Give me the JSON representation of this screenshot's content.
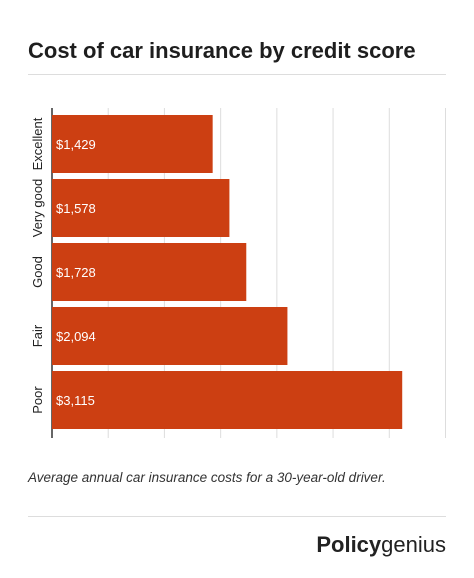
{
  "title": "Cost of car insurance by credit score",
  "caption": "Average annual car insurance costs for a 30-year-old driver.",
  "brand": {
    "bold": "Policy",
    "light": "genius"
  },
  "colors": {
    "bar": "#cc3f12",
    "grid": "#dddddd",
    "axis": "#333333",
    "label": "#ffffff"
  },
  "chart_data": {
    "type": "bar",
    "orientation": "horizontal",
    "title": "Cost of car insurance by credit score",
    "categories": [
      "Excellent",
      "Very good",
      "Good",
      "Fair",
      "Poor"
    ],
    "values": [
      1429,
      1578,
      1728,
      2094,
      3115
    ],
    "value_labels": [
      "$1,429",
      "$1,578",
      "$1,728",
      "$2,094",
      "$3,115"
    ],
    "xlim": [
      0,
      3500
    ],
    "grid": true,
    "legend": "none"
  }
}
